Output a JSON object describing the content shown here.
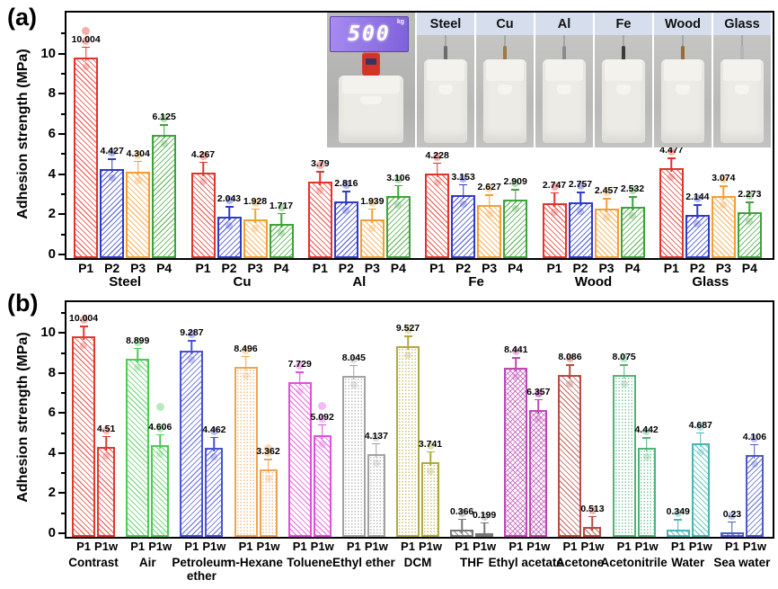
{
  "figure": {
    "panel_a_label": "(a)",
    "panel_b_label": "(b)",
    "ylabel": "Adhesion strength (MPa)"
  },
  "inset": {
    "scale_reading": "500",
    "scale_unit": "kg",
    "labels": [
      "Steel",
      "Cu",
      "Al",
      "Fe",
      "Wood",
      "Glass"
    ]
  },
  "chart_data": [
    {
      "type": "bar",
      "panel": "a",
      "ylabel": "Adhesion strength (MPa)",
      "ylim": [
        0,
        12
      ],
      "yticks": [
        0,
        2,
        4,
        6,
        8,
        10
      ],
      "grid": false,
      "categories": [
        "Steel",
        "Cu",
        "Al",
        "Fe",
        "Wood",
        "Glass"
      ],
      "series": [
        {
          "name": "P1",
          "color": "#e2342a",
          "values": [
            10.004,
            4.267,
            3.79,
            4.228,
            2.747,
            4.477
          ]
        },
        {
          "name": "P2",
          "color": "#2e3bc8",
          "values": [
            4.427,
            2.043,
            2.816,
            3.153,
            2.757,
            2.144
          ]
        },
        {
          "name": "P3",
          "color": "#f49f35",
          "values": [
            4.304,
            1.928,
            1.939,
            2.627,
            2.457,
            3.074
          ]
        },
        {
          "name": "P4",
          "color": "#3ea339",
          "values": [
            6.125,
            1.717,
            3.106,
            2.909,
            2.532,
            2.273
          ]
        }
      ]
    },
    {
      "type": "bar",
      "panel": "b",
      "ylabel": "Adhesion strength (MPa)",
      "ylim": [
        0,
        11.6
      ],
      "yticks": [
        0,
        2,
        4,
        6,
        8,
        10
      ],
      "grid": false,
      "categories": [
        "Contrast",
        "Air",
        "Petroleum ether",
        "n-Hexane",
        "Toluene",
        "Ethyl ether",
        "DCM",
        "THF",
        "Ethyl acetate",
        "Acetone",
        "Acetonitrile",
        "Water",
        "Sea water"
      ],
      "colors": [
        "#e2392e",
        "#4ecb55",
        "#4a52d6",
        "#f2a352",
        "#e14fdb",
        "#a2a2a2",
        "#b1a843",
        "#777777",
        "#bc48b4",
        "#b44d44",
        "#52b37a",
        "#4ab5b5",
        "#4d5cc6"
      ],
      "series": [
        {
          "name": "P1",
          "values": [
            10.004,
            8.899,
            9.287,
            8.496,
            7.729,
            8.045,
            9.527,
            0.366,
            8.441,
            8.086,
            8.075,
            0.349,
            0.23
          ]
        },
        {
          "name": "P1w",
          "values": [
            4.51,
            4.606,
            4.462,
            3.362,
            5.092,
            4.137,
            3.741,
            0.199,
            6.357,
            0.513,
            4.442,
            4.687,
            4.106
          ]
        }
      ],
      "outlier_dots": [
        {
          "panel": "a",
          "cat": 0,
          "series": 0,
          "value": 11.15
        },
        {
          "panel": "b",
          "cat": 1,
          "series": 1,
          "value": 6.3
        },
        {
          "panel": "b",
          "cat": 3,
          "series": 1,
          "value": 4.25
        },
        {
          "panel": "b",
          "cat": 4,
          "series": 1,
          "value": 6.35
        },
        {
          "panel": "b",
          "cat": 8,
          "series": 1,
          "value": 7.0
        }
      ]
    }
  ]
}
